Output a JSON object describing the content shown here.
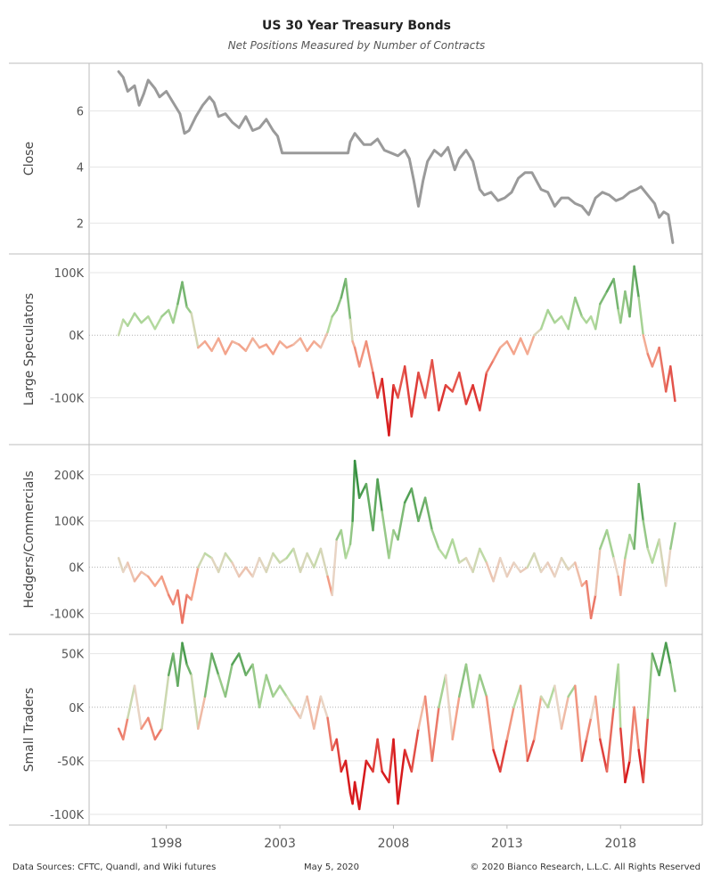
{
  "title": "US 30 Year Treasury Bonds",
  "subtitle": "Net Positions Measured by Number of Contracts",
  "footer": {
    "sources": "Data Sources: CFTC, Quandl, and Wiki futures",
    "date": "May 5, 2020",
    "copyright": "© 2020 Bianco Research, L.L.C. All Rights Reserved"
  },
  "colors": {
    "close_line": "#9a9a9a",
    "positive_dark": "#2e8b3a",
    "positive_light": "#b6dba0",
    "neutral": "#e8d4c4",
    "negative_light": "#f4a58c",
    "negative_dark": "#d7191c",
    "grid": "#e6e6e6",
    "frame": "#bdbdbd"
  },
  "chart_data": {
    "type": "line",
    "shared_x_axis": {
      "ticks": [
        1998,
        2003,
        2008,
        2013,
        2018
      ],
      "tick_labels": [
        "1998",
        "2003",
        "2008",
        "2013",
        "2018"
      ],
      "range": [
        1994.6,
        2021.6
      ]
    },
    "panels": [
      {
        "ylabel": "Close",
        "ylim": [
          0.9,
          7.7
        ],
        "yticks": [
          2,
          4,
          6
        ],
        "ytick_labels": [
          "2",
          "4",
          "6"
        ],
        "color_mode": "solid",
        "x": [
          1995.9,
          1996.1,
          1996.3,
          1996.6,
          1996.8,
          1997.0,
          1997.2,
          1997.5,
          1997.7,
          1998.0,
          1998.3,
          1998.6,
          1998.8,
          1999.0,
          1999.3,
          1999.6,
          1999.9,
          2000.1,
          2000.3,
          2000.6,
          2000.9,
          2001.2,
          2001.5,
          2001.8,
          2002.1,
          2002.4,
          2002.7,
          2002.9,
          2003.1,
          2004.0,
          2005.0,
          2006.0,
          2006.1,
          2006.3,
          2006.5,
          2006.7,
          2007.0,
          2007.3,
          2007.6,
          2007.9,
          2008.2,
          2008.5,
          2008.7,
          2008.9,
          2009.1,
          2009.3,
          2009.5,
          2009.8,
          2010.1,
          2010.4,
          2010.7,
          2010.9,
          2011.2,
          2011.5,
          2011.8,
          2012.0,
          2012.3,
          2012.6,
          2012.9,
          2013.2,
          2013.5,
          2013.8,
          2014.1,
          2014.5,
          2014.8,
          2015.1,
          2015.4,
          2015.7,
          2016.0,
          2016.3,
          2016.6,
          2016.9,
          2017.2,
          2017.5,
          2017.8,
          2018.1,
          2018.4,
          2018.7,
          2018.9,
          2019.2,
          2019.5,
          2019.7,
          2019.9,
          2020.1,
          2020.3
        ],
        "y": [
          7.4,
          7.2,
          6.7,
          6.9,
          6.2,
          6.6,
          7.1,
          6.8,
          6.5,
          6.7,
          6.3,
          5.9,
          5.2,
          5.3,
          5.8,
          6.2,
          6.5,
          6.3,
          5.8,
          5.9,
          5.6,
          5.4,
          5.8,
          5.3,
          5.4,
          5.7,
          5.3,
          5.1,
          4.5,
          4.5,
          4.5,
          4.5,
          4.9,
          5.2,
          5.0,
          4.8,
          4.8,
          5.0,
          4.6,
          4.5,
          4.4,
          4.6,
          4.3,
          3.5,
          2.6,
          3.5,
          4.2,
          4.6,
          4.4,
          4.7,
          3.9,
          4.3,
          4.6,
          4.2,
          3.2,
          3.0,
          3.1,
          2.8,
          2.9,
          3.1,
          3.6,
          3.8,
          3.8,
          3.2,
          3.1,
          2.6,
          2.9,
          2.9,
          2.7,
          2.6,
          2.3,
          2.9,
          3.1,
          3.0,
          2.8,
          2.9,
          3.1,
          3.2,
          3.3,
          3.0,
          2.7,
          2.2,
          2.4,
          2.3,
          1.3
        ]
      },
      {
        "ylabel": "Large Speculators",
        "ylim": [
          -175000,
          130000
        ],
        "yticks": [
          100000,
          0,
          -100000
        ],
        "ytick_labels": [
          "100K",
          "0K",
          "-100K"
        ],
        "color_mode": "diverging",
        "color_max": 120000,
        "x": [
          1995.9,
          1996.1,
          1996.3,
          1996.6,
          1996.9,
          1997.2,
          1997.5,
          1997.8,
          1998.1,
          1998.3,
          1998.5,
          1998.7,
          1998.9,
          1999.1,
          1999.4,
          1999.7,
          2000.0,
          2000.3,
          2000.6,
          2000.9,
          2001.2,
          2001.5,
          2001.8,
          2002.1,
          2002.4,
          2002.7,
          2003.0,
          2003.3,
          2003.6,
          2003.9,
          2004.2,
          2004.5,
          2004.8,
          2005.1,
          2005.3,
          2005.5,
          2005.7,
          2005.9,
          2006.1,
          2006.2,
          2006.3,
          2006.5,
          2006.8,
          2007.1,
          2007.3,
          2007.5,
          2007.8,
          2008.0,
          2008.2,
          2008.5,
          2008.8,
          2009.1,
          2009.4,
          2009.7,
          2010.0,
          2010.3,
          2010.6,
          2010.9,
          2011.2,
          2011.5,
          2011.8,
          2012.1,
          2012.4,
          2012.7,
          2013.0,
          2013.3,
          2013.6,
          2013.9,
          2014.2,
          2014.5,
          2014.8,
          2015.1,
          2015.4,
          2015.7,
          2016.0,
          2016.3,
          2016.5,
          2016.7,
          2016.9,
          2017.1,
          2017.4,
          2017.7,
          2017.9,
          2018.0,
          2018.2,
          2018.4,
          2018.6,
          2018.8,
          2019.0,
          2019.2,
          2019.4,
          2019.7,
          2020.0,
          2020.2,
          2020.4
        ],
        "y": [
          0,
          25000,
          15000,
          35000,
          20000,
          30000,
          10000,
          30000,
          40000,
          20000,
          50000,
          85000,
          45000,
          35000,
          -20000,
          -10000,
          -25000,
          -5000,
          -30000,
          -10000,
          -15000,
          -25000,
          -5000,
          -20000,
          -15000,
          -30000,
          -10000,
          -20000,
          -15000,
          -5000,
          -25000,
          -10000,
          -20000,
          5000,
          30000,
          40000,
          60000,
          90000,
          25000,
          -10000,
          -20000,
          -50000,
          -10000,
          -60000,
          -100000,
          -70000,
          -160000,
          -80000,
          -100000,
          -50000,
          -130000,
          -60000,
          -100000,
          -40000,
          -120000,
          -80000,
          -90000,
          -60000,
          -110000,
          -80000,
          -120000,
          -60000,
          -40000,
          -20000,
          -10000,
          -30000,
          -5000,
          -30000,
          0,
          10000,
          40000,
          20000,
          30000,
          10000,
          60000,
          30000,
          20000,
          30000,
          10000,
          50000,
          70000,
          90000,
          40000,
          20000,
          70000,
          30000,
          110000,
          60000,
          0,
          -30000,
          -50000,
          -20000,
          -90000,
          -50000,
          -105000
        ]
      },
      {
        "ylabel": "Hedgers/Commercials",
        "ylim": [
          -145000,
          265000
        ],
        "yticks": [
          200000,
          100000,
          0,
          -100000
        ],
        "ytick_labels": [
          "200K",
          "100K",
          "0K",
          "-100K"
        ],
        "color_mode": "diverging",
        "color_max": 200000,
        "x": [
          1995.9,
          1996.1,
          1996.3,
          1996.6,
          1996.9,
          1997.2,
          1997.5,
          1997.8,
          1998.1,
          1998.3,
          1998.5,
          1998.7,
          1998.9,
          1999.1,
          1999.4,
          1999.7,
          2000.0,
          2000.3,
          2000.6,
          2000.9,
          2001.2,
          2001.5,
          2001.8,
          2002.1,
          2002.4,
          2002.7,
          2003.0,
          2003.3,
          2003.6,
          2003.9,
          2004.2,
          2004.5,
          2004.8,
          2005.1,
          2005.3,
          2005.5,
          2005.7,
          2005.9,
          2006.1,
          2006.2,
          2006.3,
          2006.5,
          2006.8,
          2007.1,
          2007.3,
          2007.5,
          2007.8,
          2008.0,
          2008.2,
          2008.5,
          2008.8,
          2009.1,
          2009.4,
          2009.7,
          2010.0,
          2010.3,
          2010.6,
          2010.9,
          2011.2,
          2011.5,
          2011.8,
          2012.1,
          2012.4,
          2012.7,
          2013.0,
          2013.3,
          2013.6,
          2013.9,
          2014.2,
          2014.5,
          2014.8,
          2015.1,
          2015.4,
          2015.7,
          2016.0,
          2016.3,
          2016.5,
          2016.7,
          2016.9,
          2017.1,
          2017.4,
          2017.7,
          2017.9,
          2018.0,
          2018.2,
          2018.4,
          2018.6,
          2018.8,
          2019.0,
          2019.2,
          2019.4,
          2019.7,
          2020.0,
          2020.2,
          2020.4
        ],
        "y": [
          20000,
          -10000,
          10000,
          -30000,
          -10000,
          -20000,
          -40000,
          -20000,
          -60000,
          -80000,
          -50000,
          -120000,
          -60000,
          -70000,
          0,
          30000,
          20000,
          -10000,
          30000,
          10000,
          -20000,
          0,
          -20000,
          20000,
          -10000,
          30000,
          10000,
          20000,
          40000,
          -10000,
          30000,
          0,
          40000,
          -20000,
          -60000,
          60000,
          80000,
          20000,
          50000,
          100000,
          230000,
          150000,
          180000,
          80000,
          190000,
          120000,
          20000,
          80000,
          60000,
          140000,
          170000,
          100000,
          150000,
          80000,
          40000,
          20000,
          60000,
          10000,
          20000,
          -10000,
          40000,
          10000,
          -30000,
          20000,
          -20000,
          10000,
          -10000,
          0,
          30000,
          -10000,
          10000,
          -20000,
          20000,
          -5000,
          10000,
          -40000,
          -30000,
          -110000,
          -60000,
          40000,
          80000,
          20000,
          -20000,
          -60000,
          20000,
          70000,
          40000,
          180000,
          100000,
          40000,
          10000,
          60000,
          -40000,
          40000,
          95000
        ]
      },
      {
        "ylabel": "Small Traders",
        "ylim": [
          -110000,
          68000
        ],
        "yticks": [
          50000,
          0,
          -50000,
          -100000
        ],
        "ytick_labels": [
          "50K",
          "0K",
          "-50K",
          "-100K"
        ],
        "color_mode": "diverging",
        "color_max": 60000,
        "x": [
          1995.9,
          1996.1,
          1996.3,
          1996.6,
          1996.9,
          1997.2,
          1997.5,
          1997.8,
          1998.1,
          1998.3,
          1998.5,
          1998.7,
          1998.9,
          1999.1,
          1999.4,
          1999.7,
          2000.0,
          2000.3,
          2000.6,
          2000.9,
          2001.2,
          2001.5,
          2001.8,
          2002.1,
          2002.4,
          2002.7,
          2003.0,
          2003.3,
          2003.6,
          2003.9,
          2004.2,
          2004.5,
          2004.8,
          2005.1,
          2005.3,
          2005.5,
          2005.7,
          2005.9,
          2006.1,
          2006.2,
          2006.3,
          2006.5,
          2006.8,
          2007.1,
          2007.3,
          2007.5,
          2007.8,
          2008.0,
          2008.2,
          2008.5,
          2008.8,
          2009.1,
          2009.4,
          2009.7,
          2010.0,
          2010.3,
          2010.6,
          2010.9,
          2011.2,
          2011.5,
          2011.8,
          2012.1,
          2012.4,
          2012.7,
          2013.0,
          2013.3,
          2013.6,
          2013.9,
          2014.2,
          2014.5,
          2014.8,
          2015.1,
          2015.4,
          2015.7,
          2016.0,
          2016.3,
          2016.5,
          2016.7,
          2016.9,
          2017.1,
          2017.4,
          2017.7,
          2017.9,
          2018.0,
          2018.2,
          2018.4,
          2018.6,
          2018.8,
          2019.0,
          2019.2,
          2019.4,
          2019.7,
          2020.0,
          2020.2,
          2020.4
        ],
        "y": [
          -20000,
          -30000,
          -10000,
          20000,
          -20000,
          -10000,
          -30000,
          -20000,
          30000,
          50000,
          20000,
          60000,
          40000,
          30000,
          -20000,
          10000,
          50000,
          30000,
          10000,
          40000,
          50000,
          30000,
          40000,
          0,
          30000,
          10000,
          20000,
          10000,
          0,
          -10000,
          10000,
          -20000,
          10000,
          -10000,
          -40000,
          -30000,
          -60000,
          -50000,
          -80000,
          -90000,
          -70000,
          -95000,
          -50000,
          -60000,
          -30000,
          -60000,
          -70000,
          -30000,
          -90000,
          -40000,
          -60000,
          -20000,
          10000,
          -50000,
          0,
          30000,
          -30000,
          10000,
          40000,
          0,
          30000,
          10000,
          -40000,
          -60000,
          -30000,
          0,
          20000,
          -50000,
          -30000,
          10000,
          0,
          20000,
          -20000,
          10000,
          20000,
          -50000,
          -30000,
          -10000,
          10000,
          -30000,
          -60000,
          0,
          40000,
          -20000,
          -70000,
          -50000,
          0,
          -40000,
          -70000,
          -10000,
          50000,
          30000,
          60000,
          40000,
          15000
        ]
      }
    ]
  }
}
